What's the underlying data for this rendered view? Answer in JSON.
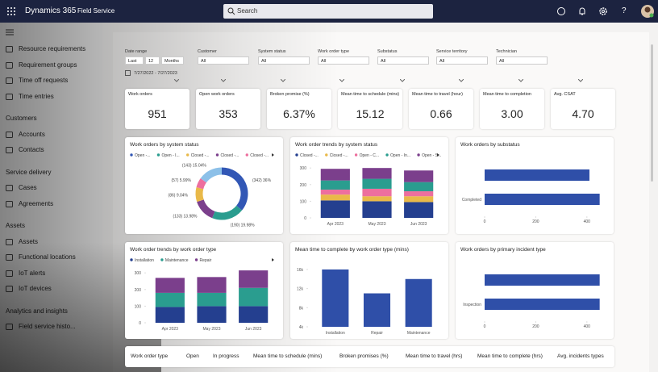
{
  "header": {
    "app": "Dynamics 365",
    "module": "Field Service",
    "search": "Search",
    "help": "?"
  },
  "nav": {
    "groups": [
      {
        "items": [
          "Resource requirements",
          "Requirement groups",
          "Time off requests",
          "Time entries"
        ]
      },
      {
        "title": "Customers",
        "items": [
          "Accounts",
          "Contacts"
        ]
      },
      {
        "title": "Service delivery",
        "items": [
          "Cases",
          "Agreements"
        ]
      },
      {
        "title": "Assets",
        "items": [
          "Assets",
          "Functional locations",
          "IoT alerts",
          "IoT devices"
        ]
      },
      {
        "title": "Analytics and insights",
        "items": [
          "Field service histo..."
        ]
      }
    ]
  },
  "filters": {
    "date_range": {
      "label": "Date range",
      "fields": [
        "Last",
        "12",
        "Months"
      ]
    },
    "date_text": "7/27/2022 - 7/27/2023",
    "items": [
      {
        "label": "Customer",
        "value": "All"
      },
      {
        "label": "System status",
        "value": "All"
      },
      {
        "label": "Work order type",
        "value": "All"
      },
      {
        "label": "Substatus",
        "value": "All"
      },
      {
        "label": "Service territory",
        "value": "All"
      },
      {
        "label": "Technician",
        "value": "All"
      }
    ]
  },
  "kpis": [
    {
      "label": "Work orders",
      "value": "951"
    },
    {
      "label": "Open work orders",
      "value": "353"
    },
    {
      "label": "Broken promise (%)",
      "value": "6.37%"
    },
    {
      "label": "Mean time to schedule (mins)",
      "value": "15.12"
    },
    {
      "label": "Mean time to travel (hour)",
      "value": "0.66"
    },
    {
      "label": "Mean time to completion",
      "value": "3.00"
    },
    {
      "label": "Avg. CSAT",
      "value": "4.70"
    }
  ],
  "charts": [
    {
      "type": "donut",
      "title": "Work orders by system status",
      "legend": [
        "Open -...",
        "Open - I...",
        "Closed -...",
        "Closed -...",
        "Closed -..."
      ],
      "legend_colors": [
        "#3257b5",
        "#2a9d8f",
        "#e9b949",
        "#7b3f8c",
        "#ed6f9e"
      ],
      "values": [
        342,
        190,
        133,
        86,
        57,
        143
      ],
      "value_labels": [
        "(342) 36%",
        "(190) 19.98%",
        "(133) 13.98%",
        "(86) 9.04%",
        "(57) 5.99%",
        "(143) 15.04%"
      ],
      "colors": [
        "#3257b5",
        "#2a9d8f",
        "#7b3f8c",
        "#e9b949",
        "#ed6f9e",
        "#8cc0e8"
      ]
    },
    {
      "type": "stacked_bar",
      "title": "Work order trends by system status",
      "categories": [
        "Apr 2023",
        "May 2023",
        "Jun 2023"
      ],
      "series": [
        {
          "name": "Closed -...",
          "color": "#243f8f",
          "values": [
            105,
            100,
            95
          ]
        },
        {
          "name": "Closed -...",
          "color": "#e9b949",
          "values": [
            35,
            30,
            35
          ]
        },
        {
          "name": "Open - C...",
          "color": "#ed6f9e",
          "values": [
            30,
            45,
            30
          ]
        },
        {
          "name": "Open - In...",
          "color": "#2a9d8f",
          "values": [
            55,
            60,
            55
          ]
        },
        {
          "name": "Open - S...",
          "color": "#7b3f8c",
          "values": [
            70,
            65,
            70
          ]
        }
      ],
      "ylim": [
        0,
        330
      ],
      "yticks": [
        0,
        100,
        200,
        300
      ]
    },
    {
      "type": "hbar",
      "title": "Work orders by substatus",
      "categories": [
        null,
        "Completed"
      ],
      "values": [
        410,
        450
      ],
      "color": "#2f4fa8",
      "xlim": [
        0,
        470
      ],
      "xticks": [
        0,
        200,
        400
      ]
    },
    {
      "type": "stacked_bar",
      "title": "Work order trends by work order type",
      "categories": [
        "Apr 2023",
        "May 2023",
        "Jun 2023"
      ],
      "series": [
        {
          "name": "Installation",
          "color": "#243f8f",
          "values": [
            95,
            100,
            100
          ]
        },
        {
          "name": "Maintenance",
          "color": "#2a9d8f",
          "values": [
            85,
            80,
            110
          ]
        },
        {
          "name": "Repair",
          "color": "#7b3f8c",
          "values": [
            90,
            95,
            105
          ]
        }
      ],
      "ylim": [
        0,
        330
      ],
      "yticks": [
        0,
        100,
        200,
        300
      ]
    },
    {
      "type": "bar",
      "title": "Mean time to complete by work order type (mins)",
      "categories": [
        "Installation",
        "Repair",
        "Maintenance"
      ],
      "values": [
        16000,
        11000,
        14000
      ],
      "color": "#2f4fa8",
      "ylim": [
        4000,
        17000
      ],
      "yticks": [
        {
          "value": 4000,
          "label": "4k"
        },
        {
          "value": 8000,
          "label": "8k"
        },
        {
          "value": 12000,
          "label": "12k"
        },
        {
          "value": 16000,
          "label": "16k"
        }
      ]
    },
    {
      "type": "hbar",
      "title": "Work orders by primary incident type",
      "categories": [
        null,
        "Inspection"
      ],
      "values": [
        450,
        450
      ],
      "color": "#2f4fa8",
      "xlim": [
        0,
        470
      ],
      "xticks": [
        0,
        200,
        400
      ]
    }
  ],
  "table": {
    "headers": [
      "Work order type",
      "Open",
      "In progress",
      "Mean time to schedule (mins)",
      "Broken promises (%)",
      "Mean time to travel (hrs)",
      "Mean time to complete (hrs)",
      "Avg. incidents types"
    ]
  }
}
